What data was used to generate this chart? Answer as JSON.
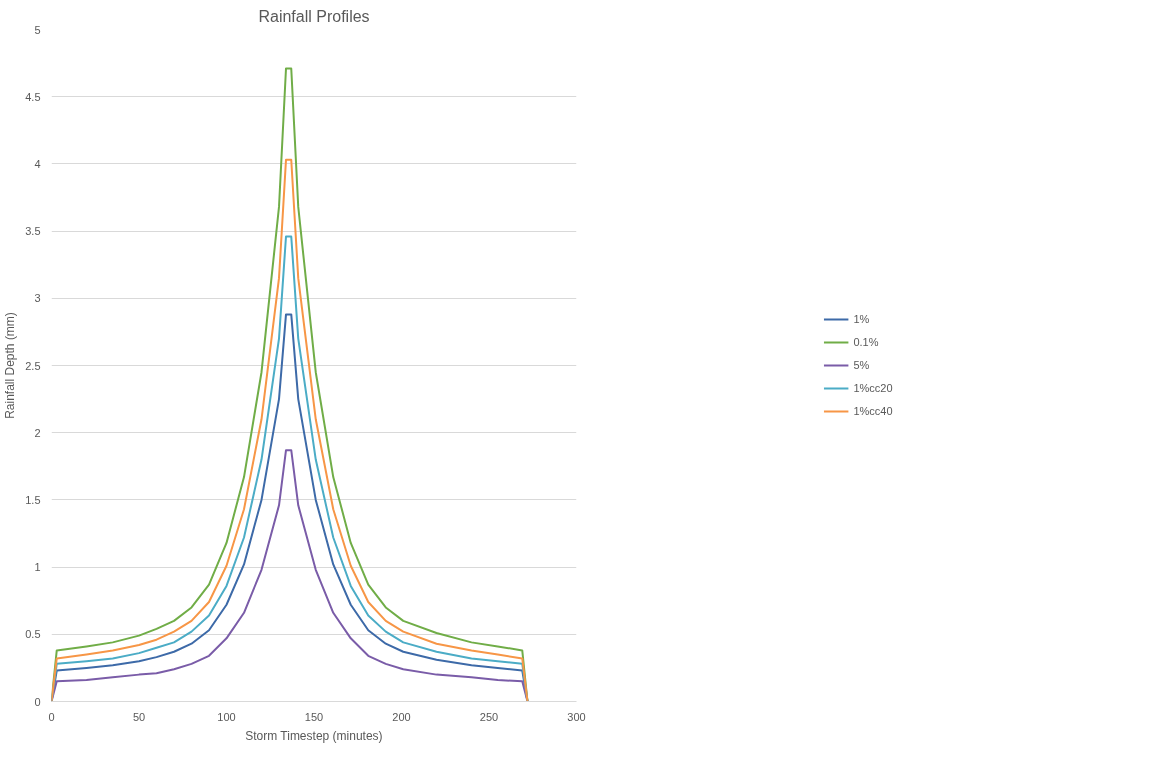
{
  "chart_data": {
    "type": "line",
    "title": "Rainfall Profiles",
    "xlabel": "Storm Timestep (minutes)",
    "ylabel": "Rainfall Depth (mm)",
    "x": [
      0,
      3,
      20,
      35,
      50,
      60,
      70,
      80,
      90,
      100,
      110,
      120,
      130,
      134,
      137,
      141,
      151,
      161,
      171,
      181,
      191,
      201,
      220,
      240,
      255,
      269,
      272
    ],
    "series": [
      {
        "name": "1%",
        "color": "#3d6aa8",
        "values": [
          0,
          0.23,
          0.25,
          0.27,
          0.3,
          0.33,
          0.37,
          0.43,
          0.53,
          0.72,
          1.02,
          1.5,
          2.25,
          2.88,
          2.88,
          2.25,
          1.5,
          1.02,
          0.72,
          0.53,
          0.43,
          0.37,
          0.31,
          0.27,
          0.25,
          0.23,
          0
        ]
      },
      {
        "name": "0.1%",
        "color": "#70ad47",
        "values": [
          0,
          0.38,
          0.41,
          0.44,
          0.49,
          0.54,
          0.6,
          0.7,
          0.87,
          1.18,
          1.67,
          2.45,
          3.68,
          4.71,
          4.71,
          3.68,
          2.45,
          1.67,
          1.18,
          0.87,
          0.7,
          0.6,
          0.51,
          0.44,
          0.41,
          0.38,
          0
        ]
      },
      {
        "name": "5%",
        "color": "#7a5ca8",
        "values": [
          0,
          0.15,
          0.16,
          0.18,
          0.2,
          0.21,
          0.24,
          0.28,
          0.34,
          0.47,
          0.66,
          0.98,
          1.46,
          1.87,
          1.87,
          1.46,
          0.98,
          0.66,
          0.47,
          0.34,
          0.28,
          0.24,
          0.2,
          0.18,
          0.16,
          0.15,
          0
        ]
      },
      {
        "name": "1%cc20",
        "color": "#4bacc6",
        "values": [
          0,
          0.28,
          0.3,
          0.32,
          0.36,
          0.4,
          0.44,
          0.52,
          0.64,
          0.86,
          1.22,
          1.8,
          2.7,
          3.46,
          3.46,
          2.7,
          1.8,
          1.22,
          0.86,
          0.64,
          0.52,
          0.44,
          0.37,
          0.32,
          0.3,
          0.28,
          0
        ]
      },
      {
        "name": "1%cc40",
        "color": "#f79646",
        "values": [
          0,
          0.32,
          0.35,
          0.38,
          0.42,
          0.46,
          0.52,
          0.6,
          0.74,
          1.01,
          1.43,
          2.1,
          3.15,
          4.03,
          4.03,
          3.15,
          2.1,
          1.43,
          1.01,
          0.74,
          0.6,
          0.52,
          0.43,
          0.38,
          0.35,
          0.32,
          0
        ]
      }
    ],
    "xlim": [
      0,
      300
    ],
    "xticks": [
      0,
      50,
      100,
      150,
      200,
      250,
      300
    ],
    "ylim": [
      0,
      5
    ],
    "yticks": [
      0,
      0.5,
      1,
      1.5,
      2,
      2.5,
      3,
      3.5,
      4,
      4.5,
      5
    ],
    "grid": "y",
    "legend": "right",
    "marker": "none",
    "line_style": "solid"
  }
}
